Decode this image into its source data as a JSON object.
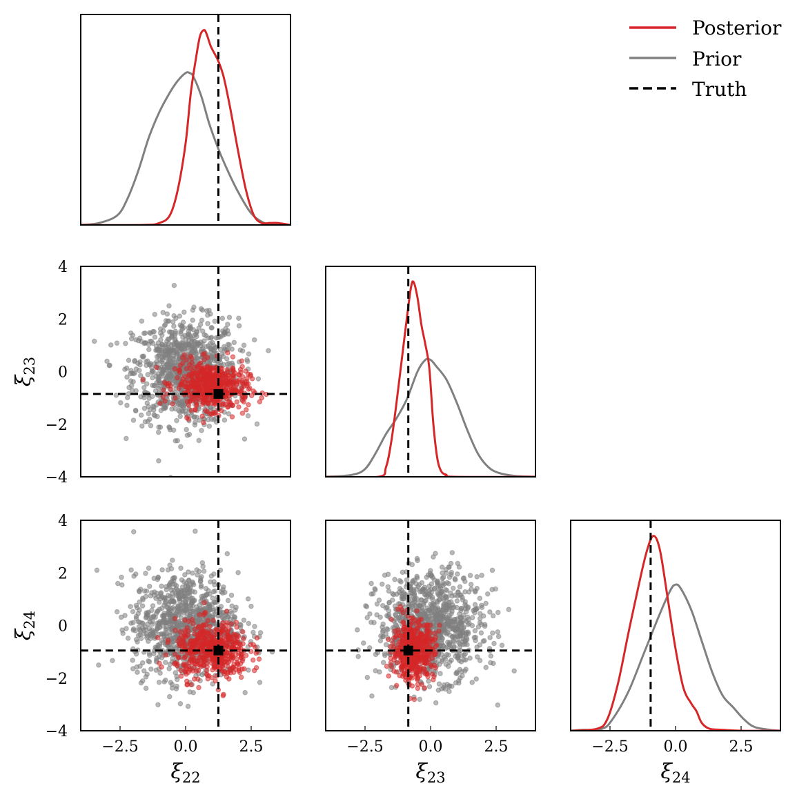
{
  "chart_data": {
    "type": "corner",
    "title": "",
    "parameters": [
      {
        "name": "xi_22",
        "label_base": "ξ",
        "label_sub": "22",
        "truth": 1.25
      },
      {
        "name": "xi_23",
        "label_base": "ξ",
        "label_sub": "23",
        "truth": -0.85
      },
      {
        "name": "xi_24",
        "label_base": "ξ",
        "label_sub": "24",
        "truth": -0.95
      }
    ],
    "axis_range": [
      -4,
      4
    ],
    "x_ticks": [
      -2.5,
      0.0,
      2.5
    ],
    "x_tick_labels": [
      "−2.5",
      "0.0",
      "2.5"
    ],
    "y_ticks": [
      -4,
      -2,
      0,
      2,
      4
    ],
    "y_tick_labels": [
      "−4",
      "−2",
      "0",
      "2",
      "4"
    ],
    "grid": false,
    "legend": {
      "placement": "top-right",
      "entries": [
        {
          "label": "Posterior",
          "color": "#d62728",
          "style": "solid"
        },
        {
          "label": "Prior",
          "color": "#808080",
          "style": "solid"
        },
        {
          "label": "Truth",
          "color": "#000000",
          "style": "dashed"
        }
      ]
    },
    "colors": {
      "posterior": "#d62728",
      "prior": "#808080",
      "truth": "#000000"
    },
    "marginals": [
      {
        "param": "xi_22",
        "posterior": {
          "x": [
            -4,
            -1.6,
            -1.0,
            -0.6,
            -0.3,
            0.0,
            0.2,
            0.4,
            0.55,
            0.7,
            0.8,
            0.95,
            1.1,
            1.25,
            1.45,
            1.7,
            2.0,
            2.3,
            2.6,
            2.9,
            3.2,
            3.5,
            4.0
          ],
          "density": [
            0,
            0,
            0.01,
            0.05,
            0.18,
            0.42,
            0.68,
            0.86,
            0.97,
            1.0,
            0.98,
            0.92,
            0.88,
            0.84,
            0.76,
            0.6,
            0.38,
            0.18,
            0.05,
            0.01,
            0.01,
            0.01,
            0
          ]
        },
        "prior": {
          "x": [
            -4,
            -3.3,
            -2.6,
            -2.2,
            -1.8,
            -1.4,
            -1.0,
            -0.6,
            -0.3,
            0.0,
            0.15,
            0.3,
            0.6,
            0.9,
            1.25,
            1.6,
            2.0,
            2.5,
            3.0,
            3.5,
            4.0
          ],
          "density": [
            0,
            0.01,
            0.05,
            0.14,
            0.28,
            0.45,
            0.58,
            0.68,
            0.74,
            0.78,
            0.78,
            0.76,
            0.66,
            0.52,
            0.39,
            0.28,
            0.17,
            0.06,
            0.01,
            0,
            0
          ]
        }
      },
      {
        "param": "xi_23",
        "posterior": {
          "x": [
            -4,
            -2.0,
            -1.7,
            -1.5,
            -1.3,
            -1.1,
            -0.9,
            -0.75,
            -0.65,
            -0.5,
            -0.35,
            -0.2,
            -0.05,
            0.1,
            0.25,
            0.4,
            0.6,
            0.9,
            4.0
          ],
          "density": [
            0,
            0,
            0.05,
            0.18,
            0.38,
            0.6,
            0.82,
            0.97,
            1.0,
            0.92,
            0.78,
            0.68,
            0.56,
            0.28,
            0.1,
            0.03,
            0.01,
            0,
            0
          ]
        },
        "prior": {
          "x": [
            -4,
            -3.0,
            -2.5,
            -2.1,
            -1.7,
            -1.3,
            -0.9,
            -0.5,
            -0.2,
            0.0,
            0.2,
            0.6,
            1.0,
            1.4,
            1.8,
            2.2,
            2.6,
            3.2,
            4.0
          ],
          "density": [
            0,
            0.01,
            0.04,
            0.12,
            0.22,
            0.3,
            0.4,
            0.54,
            0.6,
            0.6,
            0.57,
            0.5,
            0.38,
            0.24,
            0.12,
            0.05,
            0.02,
            0.005,
            0
          ]
        },
        "note": "posterior peak ≈ -0.65; prior peak ≈ -0.15"
      },
      {
        "param": "xi_24",
        "posterior": {
          "x": [
            -4,
            -3.0,
            -2.6,
            -2.2,
            -1.8,
            -1.4,
            -1.1,
            -0.85,
            -0.6,
            -0.3,
            0.0,
            0.3,
            0.6,
            0.8,
            1.0,
            1.3,
            1.8,
            2.5,
            4.0
          ],
          "density": [
            0,
            0.01,
            0.06,
            0.24,
            0.5,
            0.75,
            0.92,
            1.0,
            0.93,
            0.68,
            0.42,
            0.22,
            0.14,
            0.1,
            0.04,
            0.01,
            0.005,
            0,
            0
          ]
        },
        "prior": {
          "x": [
            -4,
            -3.6,
            -2.8,
            -2.4,
            -1.8,
            -1.2,
            -0.6,
            -0.2,
            0.0,
            0.2,
            0.6,
            1.0,
            1.4,
            1.8,
            2.2,
            2.6,
            3.0,
            3.6,
            4.0
          ],
          "density": [
            0,
            0.005,
            0.01,
            0.06,
            0.2,
            0.4,
            0.6,
            0.72,
            0.75,
            0.73,
            0.62,
            0.46,
            0.3,
            0.18,
            0.12,
            0.06,
            0.02,
            0.005,
            0
          ]
        }
      }
    ],
    "scatter_panels": [
      {
        "x_param": "xi_22",
        "y_param": "xi_23",
        "prior_samples": {
          "count": 1000,
          "mean": [
            0.0,
            0.0
          ],
          "std": [
            1.0,
            1.0
          ],
          "corr": 0.0
        },
        "posterior_samples": {
          "count": 500,
          "mean": [
            1.0,
            -0.55
          ],
          "std": [
            0.7,
            0.45
          ],
          "corr": -0.1
        }
      },
      {
        "x_param": "xi_22",
        "y_param": "xi_24",
        "prior_samples": {
          "count": 1000,
          "mean": [
            0.0,
            0.0
          ],
          "std": [
            1.0,
            1.0
          ],
          "corr": 0.0
        },
        "posterior_samples": {
          "count": 500,
          "mean": [
            1.0,
            -0.95
          ],
          "std": [
            0.7,
            0.55
          ],
          "corr": 0.0
        }
      },
      {
        "x_param": "xi_23",
        "y_param": "xi_24",
        "prior_samples": {
          "count": 1000,
          "mean": [
            0.0,
            0.0
          ],
          "std": [
            1.0,
            1.0
          ],
          "corr": 0.0
        },
        "posterior_samples": {
          "count": 500,
          "mean": [
            -0.65,
            -0.95
          ],
          "std": [
            0.4,
            0.55
          ],
          "corr": 0.0
        }
      }
    ]
  }
}
